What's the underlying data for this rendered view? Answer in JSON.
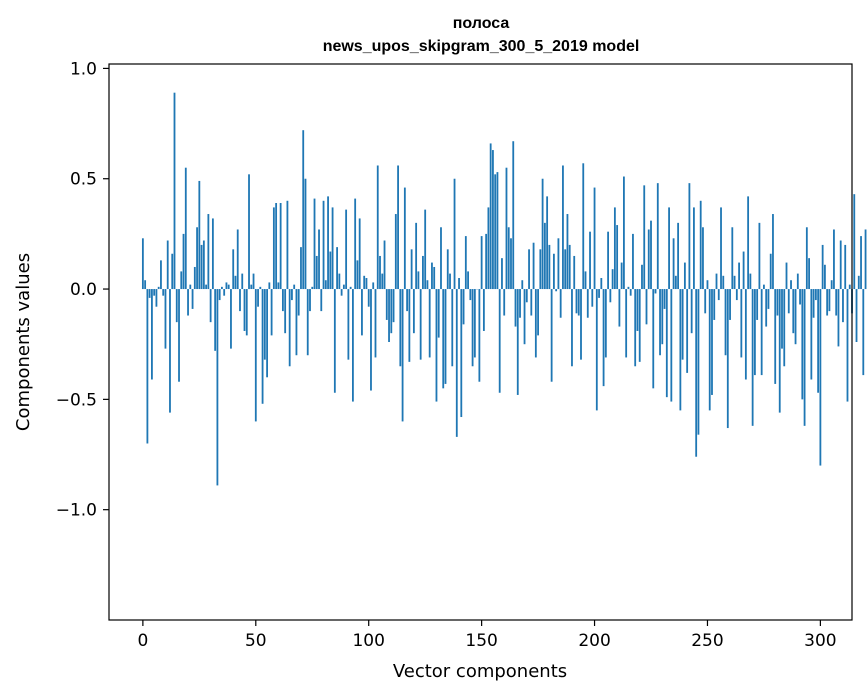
{
  "chart_data": {
    "type": "bar",
    "title_line1": "полоса",
    "title_line2": "news_upos_skipgram_300_5_2019 model",
    "xlabel": "Vector components",
    "ylabel": "Components values",
    "xlim": [
      -15,
      314
    ],
    "ylim": [
      -1.5,
      1.02
    ],
    "xticks": [
      0,
      50,
      100,
      150,
      200,
      250,
      300
    ],
    "xtick_labels": [
      "0",
      "50",
      "100",
      "150",
      "200",
      "250",
      "300"
    ],
    "yticks": [
      1.0,
      0.5,
      0.0,
      -0.5,
      -1.0
    ],
    "ytick_labels": [
      "1.0",
      "0.5",
      "0.0",
      "−0.5",
      "−1.0"
    ],
    "bar_color": "#1f77b4",
    "values": [
      0.23,
      0.04,
      -0.7,
      -0.04,
      -0.41,
      -0.03,
      -0.08,
      0.01,
      0.13,
      -0.03,
      -0.27,
      0.22,
      -0.56,
      0.16,
      0.89,
      -0.15,
      -0.42,
      0.08,
      0.25,
      0.55,
      -0.12,
      0.02,
      -0.09,
      0.1,
      0.28,
      0.49,
      0.2,
      0.22,
      0.02,
      0.34,
      -0.15,
      0.32,
      -0.28,
      -0.89,
      -0.05,
      0.01,
      -0.03,
      0.03,
      0.02,
      -0.27,
      0.18,
      0.06,
      0.27,
      -0.1,
      0.07,
      -0.19,
      -0.21,
      0.52,
      0.02,
      0.07,
      -0.6,
      -0.08,
      0.01,
      -0.52,
      -0.32,
      -0.4,
      0.03,
      -0.21,
      0.37,
      0.39,
      0.03,
      0.39,
      -0.1,
      -0.2,
      0.4,
      -0.35,
      -0.05,
      0.02,
      -0.3,
      -0.12,
      0.19,
      0.72,
      0.5,
      -0.3,
      -0.1,
      0.01,
      0.41,
      0.15,
      0.27,
      -0.1,
      0.4,
      0.04,
      0.42,
      0.17,
      0.37,
      -0.47,
      0.19,
      0.07,
      -0.03,
      0.02,
      0.36,
      -0.32,
      0.01,
      -0.51,
      0.41,
      0.13,
      0.32,
      -0.21,
      0.06,
      0.05,
      -0.08,
      -0.46,
      0.03,
      -0.31,
      0.56,
      0.15,
      0.07,
      0.22,
      -0.14,
      -0.24,
      -0.2,
      -0.15,
      0.34,
      0.56,
      -0.35,
      -0.6,
      0.46,
      -0.1,
      -0.33,
      0.18,
      -0.2,
      0.3,
      0.08,
      -0.32,
      0.15,
      0.36,
      0.04,
      -0.31,
      0.12,
      0.1,
      -0.51,
      -0.22,
      0.28,
      -0.45,
      -0.43,
      0.18,
      0.07,
      -0.35,
      0.5,
      -0.67,
      0.05,
      -0.58,
      -0.16,
      0.24,
      0.08,
      -0.05,
      -0.35,
      -0.31,
      0.0,
      -0.42,
      0.24,
      -0.19,
      0.25,
      0.37,
      0.66,
      0.63,
      0.52,
      0.53,
      -0.47,
      0.14,
      -0.12,
      0.55,
      0.28,
      0.23,
      0.67,
      -0.17,
      -0.48,
      -0.13,
      0.04,
      -0.25,
      -0.06,
      0.18,
      -0.12,
      0.21,
      -0.31,
      -0.21,
      0.18,
      0.5,
      0.3,
      0.42,
      0.2,
      -0.42,
      0.16,
      -0.01,
      0.23,
      -0.13,
      0.56,
      0.18,
      0.34,
      0.2,
      -0.35,
      0.15,
      -0.11,
      -0.12,
      -0.32,
      0.57,
      0.08,
      -0.13,
      0.26,
      -0.08,
      0.46,
      -0.55,
      -0.04,
      0.05,
      -0.44,
      -0.31,
      0.26,
      -0.06,
      0.09,
      0.37,
      0.29,
      -0.17,
      0.12,
      0.51,
      -0.31,
      0.01,
      -0.03,
      0.25,
      -0.35,
      -0.19,
      -0.33,
      0.11,
      0.47,
      -0.16,
      0.27,
      0.31,
      -0.45,
      -0.02,
      0.48,
      -0.3,
      -0.25,
      -0.09,
      -0.49,
      0.37,
      -0.51,
      0.23,
      0.06,
      0.3,
      -0.55,
      -0.32,
      0.12,
      -0.38,
      0.48,
      -0.2,
      0.37,
      -0.76,
      -0.66,
      0.4,
      0.28,
      -0.11,
      0.04,
      -0.55,
      -0.48,
      -0.14,
      0.07,
      -0.05,
      0.37,
      0.06,
      -0.3,
      -0.63,
      -0.14,
      0.28,
      0.06,
      -0.05,
      0.12,
      -0.31,
      0.17,
      -0.41,
      0.42,
      0.07,
      -0.62,
      -0.39,
      -0.14,
      0.3,
      -0.39,
      0.02,
      -0.17,
      -0.09,
      0.16,
      0.34,
      -0.43,
      -0.12,
      -0.56,
      -0.27,
      -0.35,
      0.12,
      -0.11,
      0.04,
      -0.2,
      -0.25,
      0.07,
      -0.07,
      -0.5,
      -0.62,
      0.28,
      0.14,
      -0.41,
      -0.13,
      -0.05,
      -0.47,
      -0.8,
      0.2,
      0.11,
      -0.12,
      -0.1,
      0.04,
      0.27,
      -0.12,
      -0.26,
      0.22,
      -0.15,
      0.2,
      -0.51,
      0.02,
      -0.11,
      0.43,
      -0.24,
      0.06,
      0.24,
      -0.39,
      0.27
    ]
  }
}
